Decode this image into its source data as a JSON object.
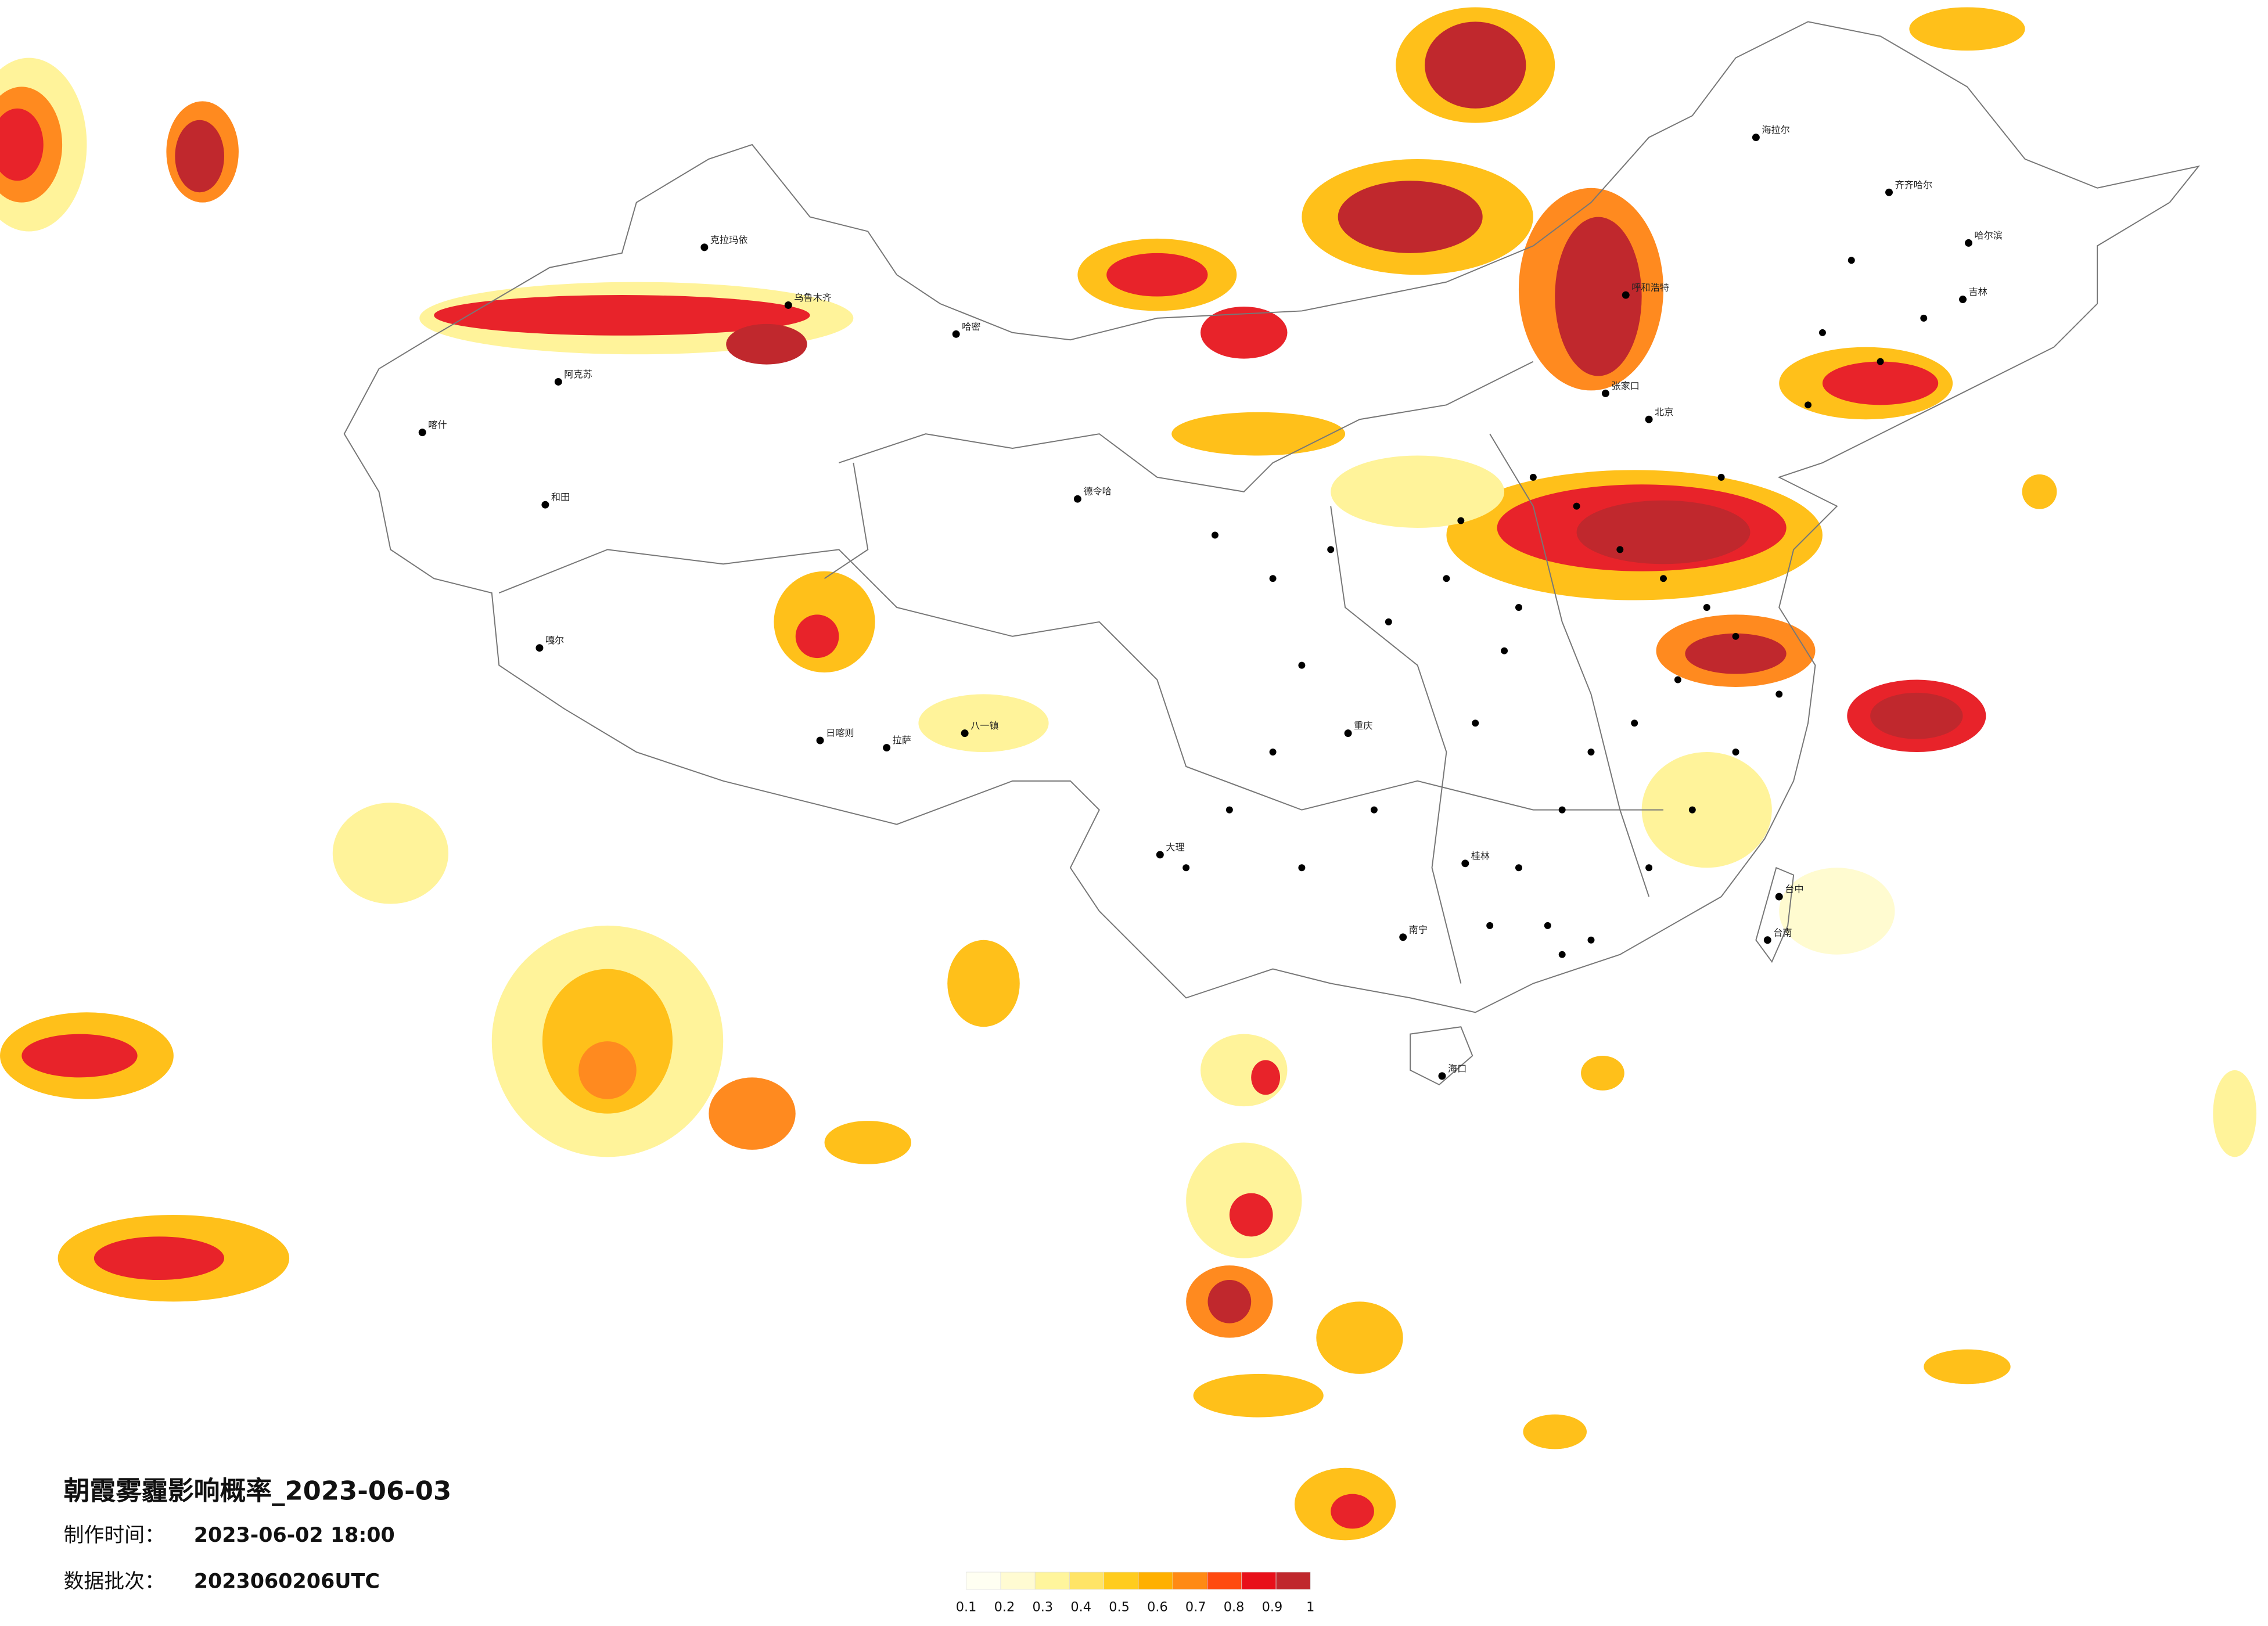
{
  "header": {
    "title": "朝霞雾霾影响概率_2023-06-03",
    "made_label": "制作时间：",
    "made_time": "2023-06-02 18:00",
    "batch_label": "数据批次：",
    "batch": "2023060206UTC"
  },
  "legend": {
    "ticks": [
      0.1,
      0.2,
      0.3,
      0.4,
      0.5,
      0.6,
      0.7,
      0.8,
      0.9,
      1
    ],
    "colors": [
      "#fffff2",
      "#fffbd2",
      "#fff59c",
      "#ffe466",
      "#ffcc1e",
      "#ffb000",
      "#ff8a14",
      "#ff4a10",
      "#e8101a",
      "#c0282d"
    ]
  },
  "cities": [
    "克拉玛依",
    "乌鲁木齐",
    "阿克苏",
    "喀什",
    "和田",
    "哈密",
    "德令哈",
    "嘎尔",
    "日喀则",
    "拉萨",
    "八一镇",
    "海拉尔",
    "齐齐哈尔",
    "哈尔滨",
    "吉林",
    "呼和浩特",
    "张家口",
    "北京",
    "重庆",
    "大理",
    "桂林",
    "南宁",
    "海口",
    "台中",
    "台南"
  ]
}
